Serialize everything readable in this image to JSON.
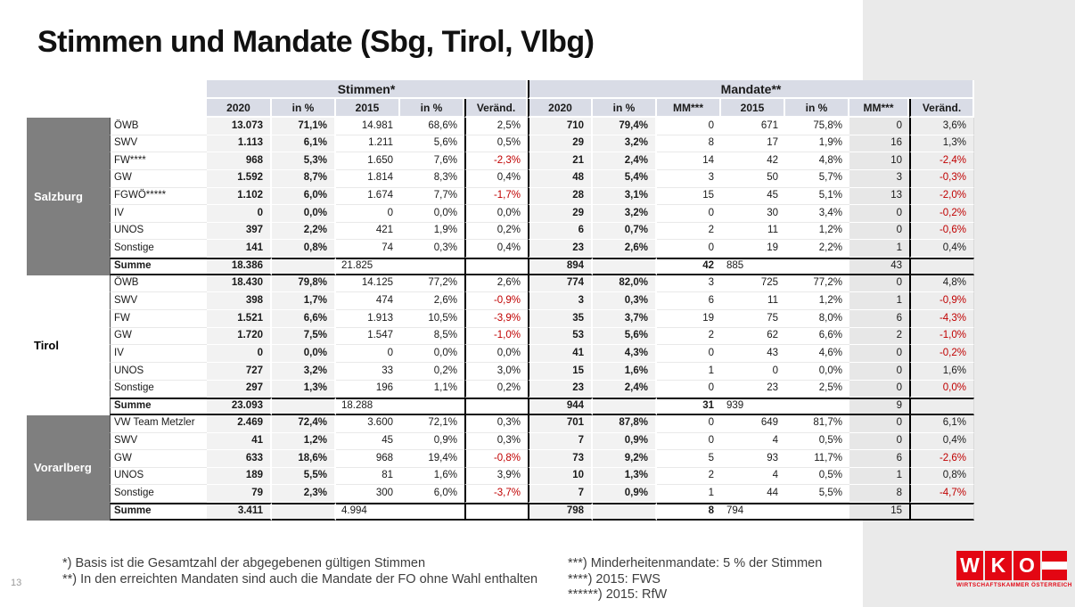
{
  "slide": {
    "title": "Stimmen und Mandate (Sbg, Tirol, Vlbg)",
    "page_number": "13"
  },
  "table": {
    "section_headers": {
      "stimmen": "Stimmen*",
      "mandate": "Mandate**"
    },
    "stimmen_columns": [
      "2020",
      "in %",
      "2015",
      "in %",
      "Veränd."
    ],
    "mandate_columns": [
      "2020",
      "in %",
      "MM***",
      "2015",
      "in %",
      "MM***",
      "Veränd."
    ],
    "regions": [
      {
        "name": "Salzburg",
        "shaded": true,
        "rows": [
          {
            "party": "ÖWB",
            "s": [
              "13.073",
              "71,1%",
              "14.981",
              "68,6%",
              "2,5%"
            ],
            "m": [
              "710",
              "79,4%",
              "0",
              "671",
              "75,8%",
              "0",
              "3,6%"
            ],
            "s_red": [],
            "m_red": []
          },
          {
            "party": "SWV",
            "s": [
              "1.113",
              "6,1%",
              "1.211",
              "5,6%",
              "0,5%"
            ],
            "m": [
              "29",
              "3,2%",
              "8",
              "17",
              "1,9%",
              "16",
              "1,3%"
            ],
            "s_red": [],
            "m_red": []
          },
          {
            "party": "FW****",
            "s": [
              "968",
              "5,3%",
              "1.650",
              "7,6%",
              "-2,3%"
            ],
            "m": [
              "21",
              "2,4%",
              "14",
              "42",
              "4,8%",
              "10",
              "-2,4%"
            ],
            "s_red": [
              4
            ],
            "m_red": [
              6
            ]
          },
          {
            "party": "GW",
            "s": [
              "1.592",
              "8,7%",
              "1.814",
              "8,3%",
              "0,4%"
            ],
            "m": [
              "48",
              "5,4%",
              "3",
              "50",
              "5,7%",
              "3",
              "-0,3%"
            ],
            "s_red": [],
            "m_red": [
              6
            ]
          },
          {
            "party": "FGWÖ*****",
            "s": [
              "1.102",
              "6,0%",
              "1.674",
              "7,7%",
              "-1,7%"
            ],
            "m": [
              "28",
              "3,1%",
              "15",
              "45",
              "5,1%",
              "13",
              "-2,0%"
            ],
            "s_red": [
              4
            ],
            "m_red": [
              6
            ]
          },
          {
            "party": "IV",
            "s": [
              "0",
              "0,0%",
              "0",
              "0,0%",
              "0,0%"
            ],
            "m": [
              "29",
              "3,2%",
              "0",
              "30",
              "3,4%",
              "0",
              "-0,2%"
            ],
            "s_red": [],
            "m_red": [
              6
            ]
          },
          {
            "party": "UNOS",
            "s": [
              "397",
              "2,2%",
              "421",
              "1,9%",
              "0,2%"
            ],
            "m": [
              "6",
              "0,7%",
              "2",
              "11",
              "1,2%",
              "0",
              "-0,6%"
            ],
            "s_red": [],
            "m_red": [
              6
            ]
          },
          {
            "party": "Sonstige",
            "s": [
              "141",
              "0,8%",
              "74",
              "0,3%",
              "0,4%"
            ],
            "m": [
              "23",
              "2,6%",
              "0",
              "19",
              "2,2%",
              "1",
              "0,4%"
            ],
            "s_red": [],
            "m_red": []
          }
        ],
        "summe": {
          "label": "Summe",
          "s2020": "18.386",
          "s2015": "21.825",
          "m2020": "894",
          "mm1": "42",
          "m2015": "885",
          "mm2": "43"
        }
      },
      {
        "name": "Tirol",
        "shaded": false,
        "rows": [
          {
            "party": "ÖWB",
            "s": [
              "18.430",
              "79,8%",
              "14.125",
              "77,2%",
              "2,6%"
            ],
            "m": [
              "774",
              "82,0%",
              "3",
              "725",
              "77,2%",
              "0",
              "4,8%"
            ],
            "s_red": [],
            "m_red": []
          },
          {
            "party": "SWV",
            "s": [
              "398",
              "1,7%",
              "474",
              "2,6%",
              "-0,9%"
            ],
            "m": [
              "3",
              "0,3%",
              "6",
              "11",
              "1,2%",
              "1",
              "-0,9%"
            ],
            "s_red": [
              4
            ],
            "m_red": [
              6
            ]
          },
          {
            "party": "FW",
            "s": [
              "1.521",
              "6,6%",
              "1.913",
              "10,5%",
              "-3,9%"
            ],
            "m": [
              "35",
              "3,7%",
              "19",
              "75",
              "8,0%",
              "6",
              "-4,3%"
            ],
            "s_red": [
              4
            ],
            "m_red": [
              6
            ]
          },
          {
            "party": "GW",
            "s": [
              "1.720",
              "7,5%",
              "1.547",
              "8,5%",
              "-1,0%"
            ],
            "m": [
              "53",
              "5,6%",
              "2",
              "62",
              "6,6%",
              "2",
              "-1,0%"
            ],
            "s_red": [
              4
            ],
            "m_red": [
              6
            ]
          },
          {
            "party": "IV",
            "s": [
              "0",
              "0,0%",
              "0",
              "0,0%",
              "0,0%"
            ],
            "m": [
              "41",
              "4,3%",
              "0",
              "43",
              "4,6%",
              "0",
              "-0,2%"
            ],
            "s_red": [],
            "m_red": [
              6
            ]
          },
          {
            "party": "UNOS",
            "s": [
              "727",
              "3,2%",
              "33",
              "0,2%",
              "3,0%"
            ],
            "m": [
              "15",
              "1,6%",
              "1",
              "0",
              "0,0%",
              "0",
              "1,6%"
            ],
            "s_red": [],
            "m_red": []
          },
          {
            "party": "Sonstige",
            "s": [
              "297",
              "1,3%",
              "196",
              "1,1%",
              "0,2%"
            ],
            "m": [
              "23",
              "2,4%",
              "0",
              "23",
              "2,5%",
              "0",
              "0,0%"
            ],
            "s_red": [],
            "m_red": [
              6
            ]
          }
        ],
        "summe": {
          "label": "Summe",
          "s2020": "23.093",
          "s2015": "18.288",
          "m2020": "944",
          "mm1": "31",
          "m2015": "939",
          "mm2": "9"
        }
      },
      {
        "name": "Vorarlberg",
        "shaded": true,
        "rows": [
          {
            "party": "VW Team Metzler",
            "s": [
              "2.469",
              "72,4%",
              "3.600",
              "72,1%",
              "0,3%"
            ],
            "m": [
              "701",
              "87,8%",
              "0",
              "649",
              "81,7%",
              "0",
              "6,1%"
            ],
            "s_red": [],
            "m_red": []
          },
          {
            "party": "SWV",
            "s": [
              "41",
              "1,2%",
              "45",
              "0,9%",
              "0,3%"
            ],
            "m": [
              "7",
              "0,9%",
              "0",
              "4",
              "0,5%",
              "0",
              "0,4%"
            ],
            "s_red": [],
            "m_red": []
          },
          {
            "party": "GW",
            "s": [
              "633",
              "18,6%",
              "968",
              "19,4%",
              "-0,8%"
            ],
            "m": [
              "73",
              "9,2%",
              "5",
              "93",
              "11,7%",
              "6",
              "-2,6%"
            ],
            "s_red": [
              4
            ],
            "m_red": [
              6
            ]
          },
          {
            "party": "UNOS",
            "s": [
              "189",
              "5,5%",
              "81",
              "1,6%",
              "3,9%"
            ],
            "m": [
              "10",
              "1,3%",
              "2",
              "4",
              "0,5%",
              "1",
              "0,8%"
            ],
            "s_red": [],
            "m_red": []
          },
          {
            "party": "Sonstige",
            "s": [
              "79",
              "2,3%",
              "300",
              "6,0%",
              "-3,7%"
            ],
            "m": [
              "7",
              "0,9%",
              "1",
              "44",
              "5,5%",
              "8",
              "-4,7%"
            ],
            "s_red": [
              4
            ],
            "m_red": [
              6
            ]
          }
        ],
        "summe": {
          "label": "Summe",
          "s2020": "3.411",
          "s2015": "4.994",
          "m2020": "798",
          "mm1": "8",
          "m2015": "794",
          "mm2": "15"
        }
      }
    ]
  },
  "footnotes": {
    "left": [
      "*) Basis ist die Gesamtzahl der abgegebenen gültigen Stimmen",
      "**) In den erreichten Mandaten sind auch die Mandate der FO ohne Wahl enthalten"
    ],
    "right": [
      "***) Minderheitenmandate: 5 % der Stimmen",
      "****) 2015: FWS",
      "******) 2015: RfW"
    ]
  },
  "logo": {
    "letters": [
      "W",
      "K",
      "O"
    ],
    "caption": "WIRTSCHAFTSKAMMER ÖSTERREICH",
    "brand_red": "#E30613"
  },
  "colors": {
    "negative_red": "#C00000",
    "region_gray": "#7F7F7F",
    "header_fill": "#D9DCE6",
    "shade_fill": "#F2F2F2",
    "band_fill": "#EAEAEA"
  }
}
